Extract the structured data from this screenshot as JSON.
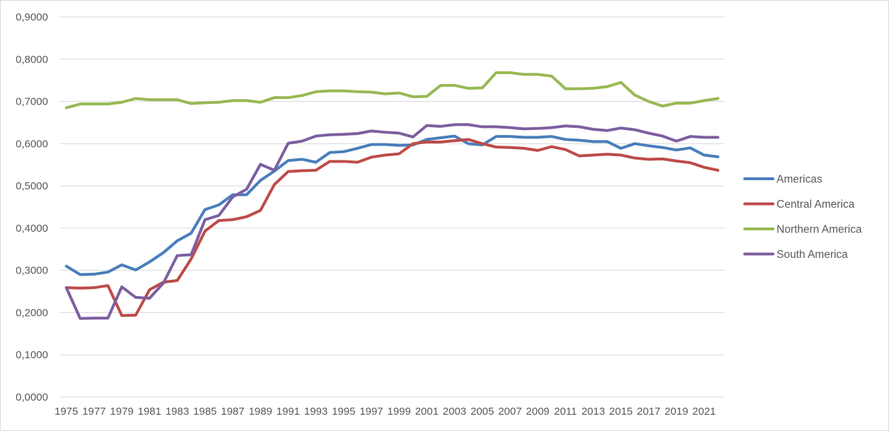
{
  "chart_data": {
    "type": "line",
    "x": [
      1975,
      1976,
      1977,
      1978,
      1979,
      1980,
      1981,
      1982,
      1983,
      1984,
      1985,
      1986,
      1987,
      1988,
      1989,
      1990,
      1991,
      1992,
      1993,
      1994,
      1995,
      1996,
      1997,
      1998,
      1999,
      2000,
      2001,
      2002,
      2003,
      2004,
      2005,
      2006,
      2007,
      2008,
      2009,
      2010,
      2011,
      2012,
      2013,
      2014,
      2015,
      2016,
      2017,
      2018,
      2019,
      2020,
      2021,
      2022
    ],
    "x_tick_labels": [
      "1975",
      "1977",
      "1979",
      "1981",
      "1983",
      "1985",
      "1987",
      "1989",
      "1991",
      "1993",
      "1995",
      "1997",
      "1999",
      "2001",
      "2003",
      "2005",
      "2007",
      "2009",
      "2011",
      "2013",
      "2015",
      "2017",
      "2019",
      "2021"
    ],
    "ylim": [
      0,
      0.9
    ],
    "y_tick_labels": [
      "0,0000",
      "0,1000",
      "0,2000",
      "0,3000",
      "0,4000",
      "0,5000",
      "0,6000",
      "0,7000",
      "0,8000",
      "0,9000"
    ],
    "grid": "horizontal",
    "legend_position": "right",
    "series": [
      {
        "name": "Americas",
        "color": "#4a7ebb",
        "values": [
          0.31,
          0.29,
          0.291,
          0.296,
          0.313,
          0.301,
          0.32,
          0.342,
          0.37,
          0.388,
          0.444,
          0.455,
          0.479,
          0.479,
          0.513,
          0.535,
          0.56,
          0.563,
          0.556,
          0.579,
          0.581,
          0.589,
          0.598,
          0.598,
          0.596,
          0.597,
          0.61,
          0.614,
          0.618,
          0.6,
          0.597,
          0.617,
          0.617,
          0.615,
          0.615,
          0.617,
          0.61,
          0.608,
          0.605,
          0.605,
          0.589,
          0.6,
          0.595,
          0.591,
          0.585,
          0.59,
          0.573,
          0.569
        ]
      },
      {
        "name": "Central America",
        "color": "#be4b48",
        "values": [
          0.259,
          0.258,
          0.259,
          0.264,
          0.193,
          0.194,
          0.254,
          0.272,
          0.276,
          0.327,
          0.393,
          0.418,
          0.42,
          0.427,
          0.442,
          0.503,
          0.534,
          0.536,
          0.537,
          0.558,
          0.558,
          0.556,
          0.568,
          0.573,
          0.576,
          0.6,
          0.604,
          0.604,
          0.607,
          0.61,
          0.6,
          0.592,
          0.591,
          0.589,
          0.584,
          0.593,
          0.586,
          0.571,
          0.573,
          0.575,
          0.573,
          0.566,
          0.563,
          0.564,
          0.559,
          0.555,
          0.544,
          0.537
        ]
      },
      {
        "name": "Northern America",
        "color": "#98b954",
        "values": [
          0.685,
          0.694,
          0.694,
          0.694,
          0.698,
          0.707,
          0.704,
          0.704,
          0.704,
          0.695,
          0.697,
          0.698,
          0.702,
          0.702,
          0.698,
          0.709,
          0.709,
          0.714,
          0.723,
          0.725,
          0.725,
          0.723,
          0.722,
          0.718,
          0.72,
          0.711,
          0.712,
          0.738,
          0.738,
          0.731,
          0.732,
          0.768,
          0.768,
          0.764,
          0.764,
          0.76,
          0.73,
          0.73,
          0.731,
          0.735,
          0.745,
          0.715,
          0.7,
          0.689,
          0.696,
          0.696,
          0.702,
          0.707
        ]
      },
      {
        "name": "South America",
        "color": "#7d5fa0",
        "values": [
          0.259,
          0.186,
          0.187,
          0.187,
          0.261,
          0.236,
          0.234,
          0.27,
          0.335,
          0.337,
          0.42,
          0.43,
          0.474,
          0.492,
          0.551,
          0.537,
          0.601,
          0.606,
          0.618,
          0.621,
          0.622,
          0.624,
          0.63,
          0.627,
          0.625,
          0.616,
          0.643,
          0.641,
          0.645,
          0.645,
          0.64,
          0.64,
          0.638,
          0.635,
          0.636,
          0.638,
          0.642,
          0.64,
          0.634,
          0.631,
          0.637,
          0.633,
          0.625,
          0.618,
          0.606,
          0.617,
          0.615,
          0.615
        ]
      }
    ]
  }
}
